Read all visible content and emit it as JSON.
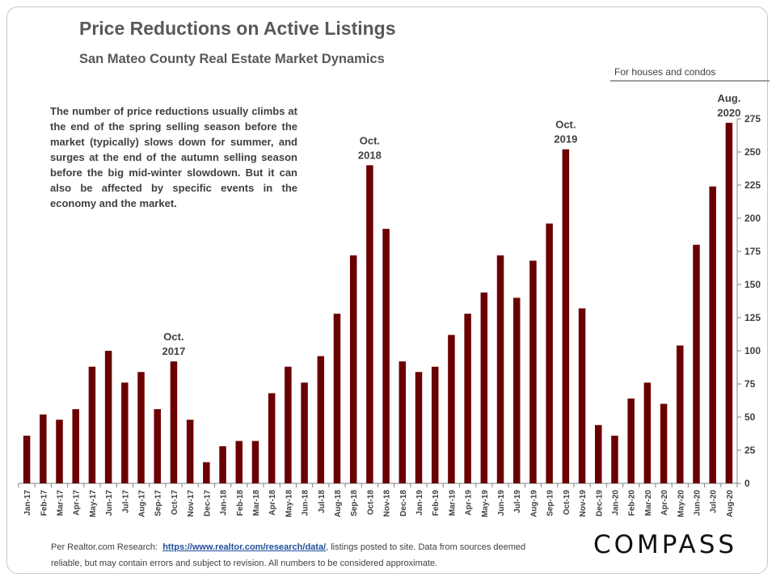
{
  "header": {
    "title": "Price Reductions on Active Listings",
    "subtitle": "San Mateo County Real Estate Market Dynamics",
    "note": "For houses and condos"
  },
  "description": "The number of price reductions usually climbs at the end of the spring selling season before the market (typically) slows down for summer, and surges at the end of the autumn selling season before the big mid-winter slowdown. But it can also be affected by specific events in the economy and the market.",
  "footer": {
    "prefix": "Per Realtor.com Research:",
    "link": "https://www.realtor.com/research/data/",
    "suffix": ", listings posted to site. Data from sources deemed reliable, but may contain errors and subject to revision. All numbers to be considered approximate.",
    "logo": "COMPASS"
  },
  "colors": {
    "bar": "#6b0000",
    "text": "#404040",
    "axis": "#808080"
  },
  "chart_data": {
    "type": "bar",
    "categories": [
      "Jan-17",
      "Feb-17",
      "Mar-17",
      "Apr-17",
      "May-17",
      "Jun-17",
      "Jul-17",
      "Aug-17",
      "Sep-17",
      "Oct-17",
      "Nov-17",
      "Dec-17",
      "Jan-18",
      "Feb-18",
      "Mar-18",
      "Apr-18",
      "May-18",
      "Jun-18",
      "Jul-18",
      "Aug-18",
      "Sep-18",
      "Oct-18",
      "Nov-18",
      "Dec-18",
      "Jan-19",
      "Feb-19",
      "Mar-19",
      "Apr-19",
      "May-19",
      "Jun-19",
      "Jul-19",
      "Aug-19",
      "Sep-19",
      "Oct-19",
      "Nov-19",
      "Dec-19",
      "Jan-20",
      "Feb-20",
      "Mar-20",
      "Apr-20",
      "May-20",
      "Jun-20",
      "Jul-20",
      "Aug-20"
    ],
    "values": [
      36,
      52,
      48,
      56,
      88,
      100,
      76,
      84,
      56,
      92,
      48,
      16,
      28,
      32,
      32,
      68,
      88,
      76,
      96,
      128,
      172,
      240,
      192,
      92,
      84,
      88,
      112,
      128,
      144,
      172,
      140,
      168,
      196,
      252,
      132,
      44,
      36,
      64,
      76,
      60,
      104,
      180,
      224,
      272
    ],
    "ylim": [
      0,
      275
    ],
    "yticks": [
      0,
      25,
      50,
      75,
      100,
      125,
      150,
      175,
      200,
      225,
      250,
      275
    ],
    "annotations": [
      {
        "category": "Oct-17",
        "lines": [
          "Oct.",
          "2017"
        ]
      },
      {
        "category": "Oct-18",
        "lines": [
          "Oct.",
          "2018"
        ]
      },
      {
        "category": "Oct-19",
        "lines": [
          "Oct.",
          "2019"
        ]
      },
      {
        "category": "Aug-20",
        "lines": [
          "Aug.",
          "2020"
        ]
      }
    ],
    "grid": false,
    "y_axis_side": "right"
  }
}
